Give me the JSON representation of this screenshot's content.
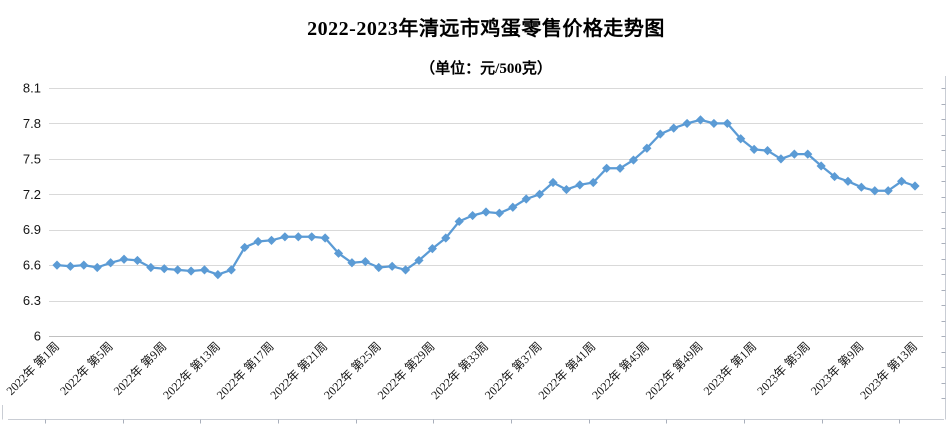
{
  "title": "2022-2023年清远市鸡蛋零售价格走势图",
  "subtitle": "（单位：元/500克）",
  "colors": {
    "series_line": "#5B9BD5",
    "gridline": "#D9D9D9",
    "axis_line": "#C0C0C0",
    "decor_line": "#C9CDD4",
    "tick_mark": "#A9AFBB",
    "label_text": "#151515"
  },
  "y_axis": {
    "labels": [
      "8.1",
      "7.8",
      "7.5",
      "7.2",
      "6.9",
      "6.6",
      "6.3",
      "6"
    ],
    "min": 6,
    "max": 8.1,
    "step": 0.3
  },
  "x_axis": {
    "tick_labels": [
      "2022年 第1周",
      "2022年 第5周",
      "2022年 第9周",
      "2022年 第13周",
      "2022年 第17周",
      "2022年 第21周",
      "2022年 第25周",
      "2022年 第29周",
      "2022年 第33周",
      "2022年 第37周",
      "2022年 第41周",
      "2022年 第45周",
      "2022年 第49周",
      "2023年 第1周",
      "2023年 第5周",
      "2023年 第9周",
      "2023年 第13周"
    ]
  },
  "chart_data": {
    "type": "line",
    "title": "2022-2023年清远市鸡蛋零售价格走势图",
    "subtitle": "（单位：元/500克）",
    "ylabel": "元/500克",
    "xlabel": "",
    "ylim": [
      6,
      8.1
    ],
    "ytick_step": 0.3,
    "grid": "horizontal",
    "legend": "none",
    "marker": "diamond",
    "tick_every": 4,
    "categories": [
      "2022年 第1周",
      "2022年 第2周",
      "2022年 第3周",
      "2022年 第4周",
      "2022年 第5周",
      "2022年 第6周",
      "2022年 第7周",
      "2022年 第8周",
      "2022年 第9周",
      "2022年 第10周",
      "2022年 第11周",
      "2022年 第12周",
      "2022年 第13周",
      "2022年 第14周",
      "2022年 第15周",
      "2022年 第16周",
      "2022年 第17周",
      "2022年 第18周",
      "2022年 第19周",
      "2022年 第20周",
      "2022年 第21周",
      "2022年 第22周",
      "2022年 第23周",
      "2022年 第24周",
      "2022年 第25周",
      "2022年 第26周",
      "2022年 第27周",
      "2022年 第28周",
      "2022年 第29周",
      "2022年 第30周",
      "2022年 第31周",
      "2022年 第32周",
      "2022年 第33周",
      "2022年 第34周",
      "2022年 第35周",
      "2022年 第36周",
      "2022年 第37周",
      "2022年 第38周",
      "2022年 第39周",
      "2022年 第40周",
      "2022年 第41周",
      "2022年 第42周",
      "2022年 第43周",
      "2022年 第44周",
      "2022年 第45周",
      "2022年 第46周",
      "2022年 第47周",
      "2022年 第48周",
      "2022年 第49周",
      "2022年 第50周",
      "2022年 第51周",
      "2022年 第52周",
      "2023年 第1周",
      "2023年 第2周",
      "2023年 第3周",
      "2023年 第4周",
      "2023年 第5周",
      "2023年 第6周",
      "2023年 第7周",
      "2023年 第8周",
      "2023年 第9周",
      "2023年 第10周",
      "2023年 第11周",
      "2023年 第12周",
      "2023年 第13周"
    ],
    "values": [
      6.6,
      6.59,
      6.6,
      6.58,
      6.62,
      6.65,
      6.64,
      6.58,
      6.57,
      6.56,
      6.55,
      6.56,
      6.52,
      6.56,
      6.75,
      6.8,
      6.81,
      6.84,
      6.84,
      6.84,
      6.83,
      6.7,
      6.62,
      6.63,
      6.58,
      6.59,
      6.56,
      6.64,
      6.74,
      6.83,
      6.97,
      7.02,
      7.05,
      7.04,
      7.09,
      7.16,
      7.2,
      7.3,
      7.24,
      7.28,
      7.3,
      7.42,
      7.42,
      7.49,
      7.59,
      7.71,
      7.76,
      7.8,
      7.83,
      7.8,
      7.8,
      7.67,
      7.58,
      7.57,
      7.5,
      7.54,
      7.54,
      7.44,
      7.35,
      7.31,
      7.26,
      7.23,
      7.23,
      7.31,
      7.27
    ]
  }
}
